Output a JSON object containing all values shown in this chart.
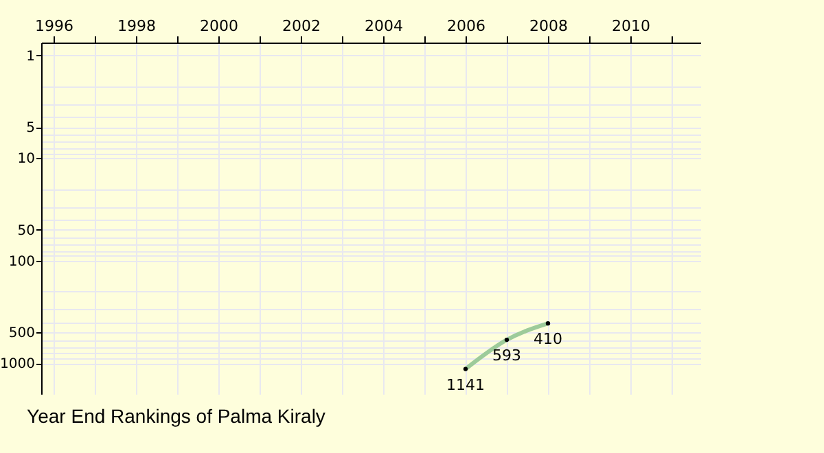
{
  "chart_data": {
    "type": "line",
    "title": "Year End Rankings of  Palma Kiraly",
    "x": [
      2006,
      2007,
      2008
    ],
    "series": [
      {
        "color": "#9dcb9a",
        "values": [
          1141,
          593,
          410
        ]
      }
    ],
    "xlim": [
      1995.7,
      2011.7
    ],
    "xticks": [
      1996,
      {
        "value": 1997,
        "label": null
      },
      1998,
      {
        "value": 1999,
        "label": null
      },
      2000,
      {
        "value": 2001,
        "label": null
      },
      2002,
      {
        "value": 2003,
        "label": null
      },
      2004,
      {
        "value": 2005,
        "label": null
      },
      2006,
      {
        "value": 2007,
        "label": null
      },
      2008,
      {
        "value": 2009,
        "label": null
      },
      2010,
      {
        "value": 2011,
        "label": null
      }
    ],
    "ylim": [
      2000,
      0.75
    ],
    "yticks": [
      1,
      {
        "value": 2,
        "label": null
      },
      {
        "value": 3,
        "label": null
      },
      {
        "value": 4,
        "label": null
      },
      5,
      {
        "value": 6,
        "label": null
      },
      {
        "value": 7,
        "label": null
      },
      {
        "value": 8,
        "label": null
      },
      {
        "value": 9,
        "label": null
      },
      10,
      {
        "value": 20,
        "label": null
      },
      {
        "value": 30,
        "label": null
      },
      {
        "value": 40,
        "label": null
      },
      50,
      {
        "value": 60,
        "label": null
      },
      {
        "value": 70,
        "label": null
      },
      {
        "value": 80,
        "label": null
      },
      {
        "value": 90,
        "label": null
      },
      100,
      {
        "value": 200,
        "label": null
      },
      {
        "value": 300,
        "label": null
      },
      {
        "value": 400,
        "label": null
      },
      500,
      {
        "value": 600,
        "label": null
      },
      {
        "value": 700,
        "label": null
      },
      {
        "value": 800,
        "label": null
      },
      {
        "value": 900,
        "label": null
      },
      1000
    ],
    "log": "y",
    "grid": true,
    "marker": "circle",
    "data_labels": true
  }
}
